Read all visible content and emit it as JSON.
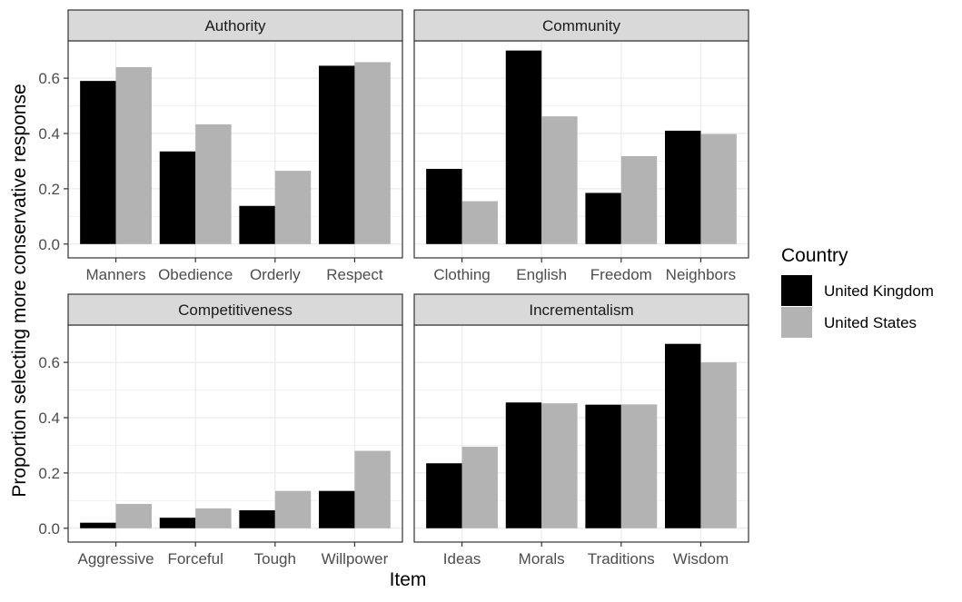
{
  "chart_data": {
    "type": "bar",
    "xlabel": "Item",
    "ylabel": "Proportion selecting more conservative response",
    "ylim": [
      -0.05,
      0.735
    ],
    "yticks": [
      0.0,
      0.2,
      0.4,
      0.6
    ],
    "ytick_labels": [
      "0.0",
      "0.2",
      "0.4",
      "0.6"
    ],
    "grid": true,
    "legend": {
      "title": "Country",
      "position": "right",
      "entries": [
        {
          "name": "United Kingdom",
          "color": "#000000"
        },
        {
          "name": "United States",
          "color": "#b3b3b3"
        }
      ]
    },
    "facets": [
      {
        "title": "Authority",
        "categories": [
          "Manners",
          "Obedience",
          "Orderly",
          "Respect"
        ],
        "series": [
          {
            "name": "United Kingdom",
            "values": [
              0.59,
              0.335,
              0.138,
              0.645
            ]
          },
          {
            "name": "United States",
            "values": [
              0.64,
              0.433,
              0.265,
              0.658
            ]
          }
        ]
      },
      {
        "title": "Community",
        "categories": [
          "Clothing",
          "English",
          "Freedom",
          "Neighbors"
        ],
        "series": [
          {
            "name": "United Kingdom",
            "values": [
              0.272,
              0.7,
              0.185,
              0.41
            ]
          },
          {
            "name": "United States",
            "values": [
              0.155,
              0.462,
              0.318,
              0.398
            ]
          }
        ]
      },
      {
        "title": "Competitiveness",
        "categories": [
          "Aggressive",
          "Forceful",
          "Tough",
          "Willpower"
        ],
        "series": [
          {
            "name": "United Kingdom",
            "values": [
              0.02,
              0.038,
              0.065,
              0.135
            ]
          },
          {
            "name": "United States",
            "values": [
              0.088,
              0.072,
              0.135,
              0.28
            ]
          }
        ]
      },
      {
        "title": "Incrementalism",
        "categories": [
          "Ideas",
          "Morals",
          "Traditions",
          "Wisdom"
        ],
        "series": [
          {
            "name": "United Kingdom",
            "values": [
              0.235,
              0.455,
              0.447,
              0.667
            ]
          },
          {
            "name": "United States",
            "values": [
              0.295,
              0.452,
              0.448,
              0.6
            ]
          }
        ]
      }
    ]
  }
}
